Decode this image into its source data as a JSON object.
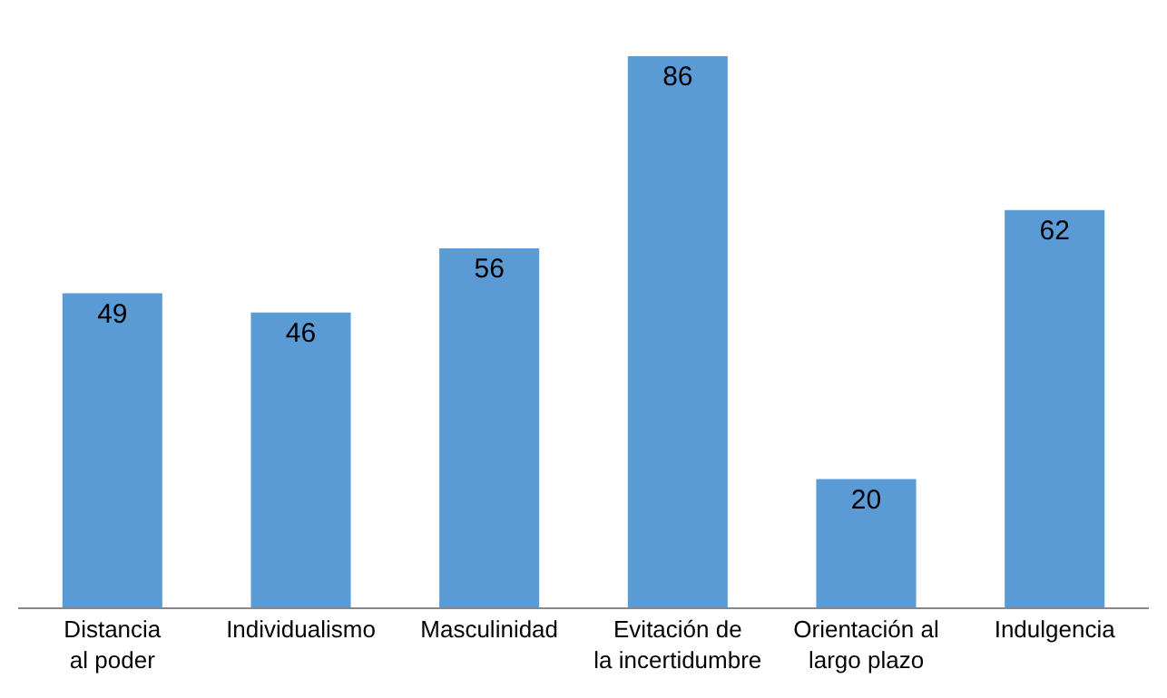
{
  "chart_data": {
    "type": "bar",
    "categories": [
      "Distancia\nal poder",
      "Individualismo",
      "Masculinidad",
      "Evitación de\nla incertidumbre",
      "Orientación al\nlargo plazo",
      "Indulgencia"
    ],
    "values": [
      49,
      46,
      56,
      86,
      20,
      62
    ],
    "color": "#5b9bd5",
    "data_labels": true,
    "legend": false
  }
}
